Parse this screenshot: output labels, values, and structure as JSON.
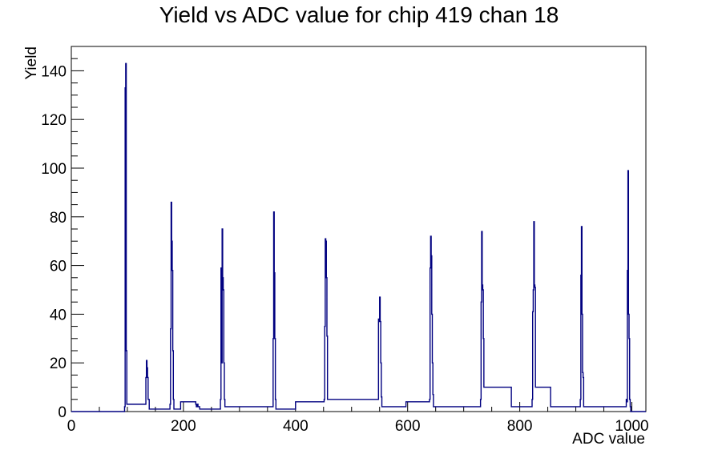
{
  "chart_data": {
    "type": "bar",
    "title": "Yield vs ADC value for chip 419 chan 18",
    "xlabel": "ADC value",
    "ylabel": "Yield",
    "xlim": [
      0,
      1025
    ],
    "ylim": [
      0,
      150
    ],
    "x_ticks": [
      0,
      200,
      400,
      600,
      800,
      1000
    ],
    "y_ticks": [
      0,
      20,
      40,
      60,
      80,
      100,
      120,
      140
    ],
    "grid": false,
    "legend": "none",
    "bin_width": 1,
    "series": [
      {
        "color": "#000080",
        "points": [
          [
            95,
            2
          ],
          [
            96,
            133
          ],
          [
            97,
            143
          ],
          [
            98,
            25
          ],
          [
            99,
            3
          ],
          [
            132,
            3
          ],
          [
            133,
            14
          ],
          [
            134,
            21
          ],
          [
            135,
            18
          ],
          [
            136,
            14
          ],
          [
            137,
            5
          ],
          [
            138,
            5
          ],
          [
            139,
            1
          ],
          [
            176,
            3
          ],
          [
            177,
            34
          ],
          [
            178,
            86
          ],
          [
            179,
            70
          ],
          [
            180,
            58
          ],
          [
            181,
            25
          ],
          [
            182,
            5
          ],
          [
            183,
            1
          ],
          [
            195,
            4
          ],
          [
            222,
            3
          ],
          [
            223,
            2
          ],
          [
            224,
            3
          ],
          [
            226,
            2
          ],
          [
            229,
            1
          ],
          [
            266,
            5
          ],
          [
            267,
            59
          ],
          [
            268,
            20
          ],
          [
            269,
            75
          ],
          [
            270,
            55
          ],
          [
            271,
            50
          ],
          [
            272,
            20
          ],
          [
            273,
            5
          ],
          [
            274,
            2
          ],
          [
            359,
            2
          ],
          [
            360,
            30
          ],
          [
            361,
            82
          ],
          [
            362,
            57
          ],
          [
            363,
            30
          ],
          [
            364,
            5
          ],
          [
            365,
            1
          ],
          [
            400,
            4
          ],
          [
            451,
            5
          ],
          [
            452,
            35
          ],
          [
            453,
            71
          ],
          [
            454,
            70
          ],
          [
            455,
            55
          ],
          [
            456,
            31
          ],
          [
            457,
            5
          ],
          [
            547,
            5
          ],
          [
            548,
            38
          ],
          [
            549,
            37
          ],
          [
            550,
            47
          ],
          [
            551,
            37
          ],
          [
            552,
            20
          ],
          [
            553,
            6
          ],
          [
            554,
            2
          ],
          [
            597,
            4
          ],
          [
            639,
            5
          ],
          [
            640,
            59
          ],
          [
            641,
            72
          ],
          [
            642,
            64
          ],
          [
            643,
            40
          ],
          [
            644,
            20
          ],
          [
            645,
            7
          ],
          [
            646,
            2
          ],
          [
            730,
            5
          ],
          [
            731,
            45
          ],
          [
            732,
            74
          ],
          [
            733,
            52
          ],
          [
            734,
            50
          ],
          [
            735,
            30
          ],
          [
            736,
            10
          ],
          [
            785,
            2
          ],
          [
            822,
            5
          ],
          [
            823,
            41
          ],
          [
            824,
            50
          ],
          [
            825,
            78
          ],
          [
            826,
            52
          ],
          [
            827,
            51
          ],
          [
            828,
            10
          ],
          [
            855,
            2
          ],
          [
            908,
            5
          ],
          [
            909,
            56
          ],
          [
            910,
            76
          ],
          [
            911,
            40
          ],
          [
            912,
            16
          ],
          [
            913,
            14
          ],
          [
            914,
            2
          ],
          [
            990,
            5
          ],
          [
            991,
            4
          ],
          [
            992,
            58
          ],
          [
            993,
            99
          ],
          [
            994,
            40
          ],
          [
            995,
            30
          ],
          [
            996,
            5
          ],
          [
            997,
            2
          ]
        ]
      }
    ]
  }
}
